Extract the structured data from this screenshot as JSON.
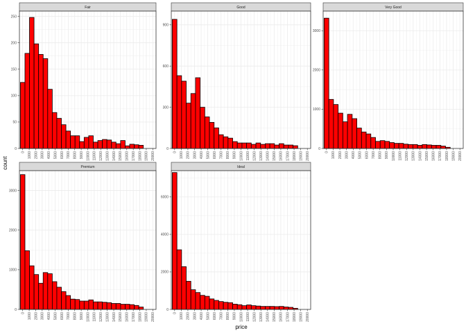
{
  "chart_data": {
    "type": "bar",
    "subtype": "faceted-histogram",
    "xlabel": "price",
    "ylabel": "count",
    "xlim": [
      -500,
      20500
    ],
    "bin_width": 700,
    "bin_centers": [
      0,
      700,
      1400,
      2100,
      2800,
      3500,
      4200,
      4900,
      5600,
      6300,
      7000,
      7700,
      8400,
      9100,
      9800,
      10500,
      11200,
      11900,
      12600,
      13300,
      14000,
      14700,
      15400,
      16100,
      16800,
      17500,
      18200,
      18900
    ],
    "x_ticks": [
      "0",
      "1000",
      "2000",
      "3000",
      "4000",
      "5000",
      "6000",
      "7000",
      "8000",
      "9000",
      "10000",
      "11000",
      "12000",
      "13000",
      "14000",
      "15000",
      "16000",
      "17000",
      "18000",
      "19000",
      "20000"
    ],
    "grid": true,
    "colors": {
      "bar_fill": "#ff0000",
      "bar_outline": "#000000",
      "strip_fill": "#d9d9d9",
      "grid": "#ebebeb"
    },
    "panels": [
      {
        "name": "Fair",
        "ylim": [
          0,
          260
        ],
        "y_ticks": [
          0,
          50,
          100,
          150,
          200,
          250
        ],
        "values": [
          125,
          180,
          248,
          198,
          178,
          170,
          112,
          68,
          57,
          45,
          33,
          24,
          24,
          13,
          21,
          24,
          12,
          15,
          17,
          16,
          12,
          9,
          15,
          5,
          8,
          7,
          6,
          0
        ]
      },
      {
        "name": "Good",
        "ylim": [
          0,
          1000
        ],
        "y_ticks": [
          0,
          300,
          600,
          900
        ],
        "values": [
          940,
          530,
          490,
          330,
          400,
          515,
          300,
          230,
          190,
          150,
          100,
          85,
          75,
          50,
          40,
          40,
          40,
          30,
          40,
          30,
          35,
          35,
          25,
          35,
          25,
          25,
          20,
          0
        ]
      },
      {
        "name": "Very Good",
        "ylim": [
          0,
          3500
        ],
        "y_ticks": [
          0,
          1000,
          2000,
          3000
        ],
        "values": [
          3320,
          1250,
          1120,
          900,
          680,
          870,
          760,
          520,
          420,
          370,
          280,
          180,
          200,
          180,
          150,
          130,
          130,
          110,
          100,
          100,
          80,
          100,
          90,
          80,
          80,
          60,
          30,
          0
        ]
      },
      {
        "name": "Premium",
        "ylim": [
          0,
          3500
        ],
        "y_ticks": [
          0,
          1000,
          2000,
          3000
        ],
        "values": [
          3400,
          1480,
          1100,
          880,
          660,
          930,
          900,
          700,
          560,
          450,
          350,
          260,
          250,
          210,
          210,
          240,
          190,
          190,
          180,
          170,
          150,
          150,
          130,
          130,
          120,
          100,
          60,
          0
        ]
      },
      {
        "name": "Ideal",
        "ylim": [
          0,
          7400
        ],
        "y_ticks": [
          0,
          2000,
          4000,
          6000
        ],
        "values": [
          7300,
          3180,
          2280,
          1500,
          1050,
          900,
          750,
          700,
          560,
          480,
          420,
          380,
          360,
          280,
          250,
          200,
          240,
          200,
          180,
          160,
          160,
          160,
          150,
          160,
          130,
          110,
          60,
          0
        ]
      }
    ]
  }
}
